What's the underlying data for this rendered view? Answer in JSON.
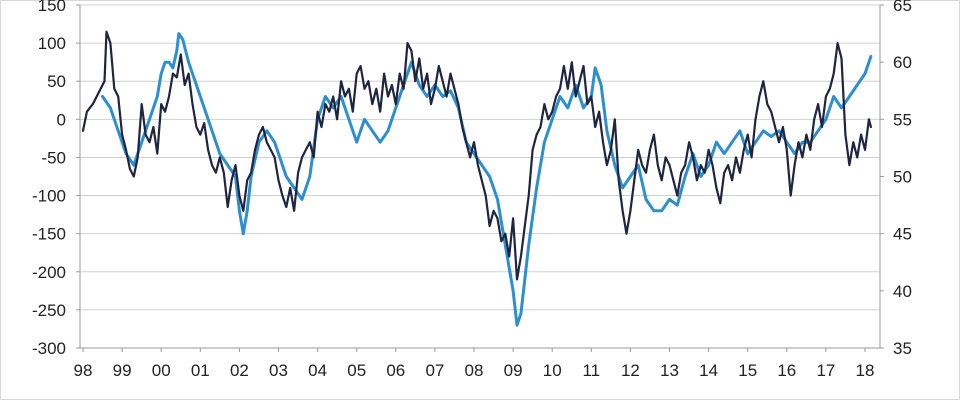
{
  "chart_data": {
    "type": "line",
    "title": "",
    "xlabel": "",
    "ylabel": "",
    "y2label": "",
    "grid": true,
    "legend": "none",
    "x_ticks": [
      "98",
      "99",
      "00",
      "01",
      "02",
      "03",
      "04",
      "05",
      "06",
      "07",
      "08",
      "09",
      "10",
      "11",
      "12",
      "13",
      "14",
      "15",
      "16",
      "17",
      "18"
    ],
    "y_left_ticks": [
      "150",
      "100",
      "50",
      "0",
      "-50",
      "-100",
      "-150",
      "-200",
      "-250",
      "-300"
    ],
    "y_right_ticks": [
      "65",
      "60",
      "55",
      "50",
      "45",
      "40",
      "35"
    ],
    "y_left_lim": [
      -300,
      150
    ],
    "y_right_lim": [
      35,
      65
    ],
    "x_lim": [
      1998.0,
      2018.35
    ],
    "series": [
      {
        "axis": "left",
        "color": "#1f2440",
        "points": [
          [
            1998.0,
            -15
          ],
          [
            1998.1,
            10
          ],
          [
            1998.25,
            20
          ],
          [
            1998.4,
            35
          ],
          [
            1998.55,
            50
          ],
          [
            1998.6,
            115
          ],
          [
            1998.7,
            100
          ],
          [
            1998.8,
            40
          ],
          [
            1998.9,
            30
          ],
          [
            1999.0,
            -20
          ],
          [
            1999.1,
            -40
          ],
          [
            1999.2,
            -65
          ],
          [
            1999.3,
            -75
          ],
          [
            1999.4,
            -50
          ],
          [
            1999.5,
            20
          ],
          [
            1999.6,
            -20
          ],
          [
            1999.7,
            -30
          ],
          [
            1999.8,
            -10
          ],
          [
            1999.9,
            -45
          ],
          [
            2000.0,
            20
          ],
          [
            2000.1,
            10
          ],
          [
            2000.2,
            30
          ],
          [
            2000.3,
            60
          ],
          [
            2000.4,
            55
          ],
          [
            2000.5,
            85
          ],
          [
            2000.6,
            45
          ],
          [
            2000.7,
            60
          ],
          [
            2000.8,
            20
          ],
          [
            2000.9,
            -10
          ],
          [
            2001.0,
            -20
          ],
          [
            2001.1,
            -5
          ],
          [
            2001.2,
            -40
          ],
          [
            2001.3,
            -60
          ],
          [
            2001.4,
            -70
          ],
          [
            2001.5,
            -50
          ],
          [
            2001.6,
            -70
          ],
          [
            2001.7,
            -115
          ],
          [
            2001.8,
            -80
          ],
          [
            2001.9,
            -60
          ],
          [
            2002.0,
            -100
          ],
          [
            2002.1,
            -120
          ],
          [
            2002.2,
            -80
          ],
          [
            2002.3,
            -70
          ],
          [
            2002.4,
            -40
          ],
          [
            2002.5,
            -20
          ],
          [
            2002.6,
            -10
          ],
          [
            2002.7,
            -30
          ],
          [
            2002.8,
            -40
          ],
          [
            2002.9,
            -50
          ],
          [
            2003.0,
            -80
          ],
          [
            2003.1,
            -100
          ],
          [
            2003.2,
            -115
          ],
          [
            2003.3,
            -90
          ],
          [
            2003.4,
            -120
          ],
          [
            2003.5,
            -70
          ],
          [
            2003.6,
            -50
          ],
          [
            2003.7,
            -40
          ],
          [
            2003.8,
            -30
          ],
          [
            2003.9,
            -50
          ],
          [
            2004.0,
            10
          ],
          [
            2004.1,
            -10
          ],
          [
            2004.2,
            20
          ],
          [
            2004.3,
            10
          ],
          [
            2004.4,
            30
          ],
          [
            2004.5,
            0
          ],
          [
            2004.6,
            50
          ],
          [
            2004.7,
            30
          ],
          [
            2004.8,
            40
          ],
          [
            2004.9,
            10
          ],
          [
            2005.0,
            60
          ],
          [
            2005.1,
            70
          ],
          [
            2005.2,
            40
          ],
          [
            2005.3,
            50
          ],
          [
            2005.4,
            20
          ],
          [
            2005.5,
            40
          ],
          [
            2005.6,
            10
          ],
          [
            2005.7,
            60
          ],
          [
            2005.8,
            30
          ],
          [
            2005.9,
            45
          ],
          [
            2006.0,
            20
          ],
          [
            2006.1,
            60
          ],
          [
            2006.2,
            40
          ],
          [
            2006.3,
            100
          ],
          [
            2006.4,
            90
          ],
          [
            2006.5,
            50
          ],
          [
            2006.6,
            80
          ],
          [
            2006.7,
            40
          ],
          [
            2006.8,
            60
          ],
          [
            2006.9,
            20
          ],
          [
            2007.0,
            40
          ],
          [
            2007.1,
            70
          ],
          [
            2007.2,
            50
          ],
          [
            2007.3,
            30
          ],
          [
            2007.4,
            60
          ],
          [
            2007.5,
            40
          ],
          [
            2007.6,
            20
          ],
          [
            2007.7,
            -10
          ],
          [
            2007.8,
            -30
          ],
          [
            2007.9,
            -50
          ],
          [
            2008.0,
            -30
          ],
          [
            2008.1,
            -60
          ],
          [
            2008.2,
            -80
          ],
          [
            2008.3,
            -100
          ],
          [
            2008.4,
            -140
          ],
          [
            2008.5,
            -120
          ],
          [
            2008.6,
            -130
          ],
          [
            2008.7,
            -160
          ],
          [
            2008.8,
            -150
          ],
          [
            2008.9,
            -180
          ],
          [
            2009.0,
            -130
          ],
          [
            2009.1,
            -210
          ],
          [
            2009.2,
            -180
          ],
          [
            2009.3,
            -140
          ],
          [
            2009.4,
            -100
          ],
          [
            2009.5,
            -40
          ],
          [
            2009.6,
            -20
          ],
          [
            2009.7,
            -10
          ],
          [
            2009.8,
            20
          ],
          [
            2009.9,
            0
          ],
          [
            2010.0,
            10
          ],
          [
            2010.1,
            30
          ],
          [
            2010.2,
            40
          ],
          [
            2010.3,
            70
          ],
          [
            2010.4,
            40
          ],
          [
            2010.5,
            75
          ],
          [
            2010.6,
            30
          ],
          [
            2010.7,
            50
          ],
          [
            2010.8,
            70
          ],
          [
            2010.9,
            20
          ],
          [
            2011.0,
            30
          ],
          [
            2011.1,
            -10
          ],
          [
            2011.2,
            10
          ],
          [
            2011.3,
            -30
          ],
          [
            2011.4,
            -60
          ],
          [
            2011.5,
            -40
          ],
          [
            2011.6,
            0
          ],
          [
            2011.7,
            -80
          ],
          [
            2011.8,
            -120
          ],
          [
            2011.9,
            -150
          ],
          [
            2012.0,
            -120
          ],
          [
            2012.1,
            -80
          ],
          [
            2012.2,
            -40
          ],
          [
            2012.3,
            -60
          ],
          [
            2012.4,
            -70
          ],
          [
            2012.5,
            -40
          ],
          [
            2012.6,
            -20
          ],
          [
            2012.7,
            -60
          ],
          [
            2012.8,
            -80
          ],
          [
            2012.9,
            -50
          ],
          [
            2013.0,
            -60
          ],
          [
            2013.1,
            -80
          ],
          [
            2013.2,
            -100
          ],
          [
            2013.3,
            -70
          ],
          [
            2013.4,
            -60
          ],
          [
            2013.5,
            -30
          ],
          [
            2013.6,
            -50
          ],
          [
            2013.7,
            -80
          ],
          [
            2013.8,
            -60
          ],
          [
            2013.9,
            -70
          ],
          [
            2014.0,
            -40
          ],
          [
            2014.1,
            -60
          ],
          [
            2014.2,
            -90
          ],
          [
            2014.3,
            -110
          ],
          [
            2014.4,
            -70
          ],
          [
            2014.5,
            -60
          ],
          [
            2014.6,
            -80
          ],
          [
            2014.7,
            -50
          ],
          [
            2014.8,
            -70
          ],
          [
            2014.9,
            -40
          ],
          [
            2015.0,
            -20
          ],
          [
            2015.1,
            -50
          ],
          [
            2015.2,
            0
          ],
          [
            2015.3,
            30
          ],
          [
            2015.4,
            50
          ],
          [
            2015.5,
            20
          ],
          [
            2015.6,
            10
          ],
          [
            2015.7,
            -10
          ],
          [
            2015.8,
            -30
          ],
          [
            2015.9,
            -10
          ],
          [
            2016.0,
            -40
          ],
          [
            2016.1,
            -100
          ],
          [
            2016.2,
            -60
          ],
          [
            2016.3,
            -30
          ],
          [
            2016.4,
            -50
          ],
          [
            2016.5,
            -20
          ],
          [
            2016.6,
            -40
          ],
          [
            2016.7,
            0
          ],
          [
            2016.8,
            20
          ],
          [
            2016.9,
            -10
          ],
          [
            2017.0,
            30
          ],
          [
            2017.1,
            40
          ],
          [
            2017.2,
            60
          ],
          [
            2017.3,
            100
          ],
          [
            2017.4,
            80
          ],
          [
            2017.5,
            -20
          ],
          [
            2017.6,
            -60
          ],
          [
            2017.7,
            -30
          ],
          [
            2017.8,
            -50
          ],
          [
            2017.9,
            -20
          ],
          [
            2018.0,
            -40
          ],
          [
            2018.1,
            0
          ],
          [
            2018.15,
            -10
          ]
        ]
      },
      {
        "axis": "right",
        "color": "#2e8fd0",
        "points": [
          [
            1998.5,
            57
          ],
          [
            1998.7,
            56
          ],
          [
            1998.9,
            54
          ],
          [
            1999.1,
            52
          ],
          [
            1999.3,
            51
          ],
          [
            1999.5,
            53
          ],
          [
            1999.7,
            55
          ],
          [
            1999.9,
            57
          ],
          [
            2000.0,
            59
          ],
          [
            2000.1,
            60
          ],
          [
            2000.2,
            60
          ],
          [
            2000.3,
            59.5
          ],
          [
            2000.4,
            61
          ],
          [
            2000.45,
            62.5
          ],
          [
            2000.55,
            62
          ],
          [
            2000.7,
            60
          ],
          [
            2000.9,
            58
          ],
          [
            2001.1,
            56
          ],
          [
            2001.3,
            54
          ],
          [
            2001.5,
            52
          ],
          [
            2001.7,
            51
          ],
          [
            2001.9,
            50
          ],
          [
            2002.0,
            47
          ],
          [
            2002.1,
            45
          ],
          [
            2002.2,
            47
          ],
          [
            2002.3,
            50
          ],
          [
            2002.5,
            53
          ],
          [
            2002.7,
            54
          ],
          [
            2002.9,
            53
          ],
          [
            2003.0,
            52
          ],
          [
            2003.2,
            50
          ],
          [
            2003.4,
            49
          ],
          [
            2003.6,
            48
          ],
          [
            2003.8,
            50
          ],
          [
            2004.0,
            55
          ],
          [
            2004.2,
            57
          ],
          [
            2004.4,
            56
          ],
          [
            2004.6,
            57
          ],
          [
            2004.8,
            55
          ],
          [
            2005.0,
            53
          ],
          [
            2005.2,
            55
          ],
          [
            2005.4,
            54
          ],
          [
            2005.6,
            53
          ],
          [
            2005.8,
            54
          ],
          [
            2006.0,
            56
          ],
          [
            2006.2,
            58
          ],
          [
            2006.4,
            60
          ],
          [
            2006.6,
            58
          ],
          [
            2006.8,
            57
          ],
          [
            2007.0,
            58
          ],
          [
            2007.2,
            57
          ],
          [
            2007.4,
            57.5
          ],
          [
            2007.6,
            56
          ],
          [
            2007.8,
            53
          ],
          [
            2008.0,
            52
          ],
          [
            2008.2,
            51
          ],
          [
            2008.4,
            50
          ],
          [
            2008.6,
            48
          ],
          [
            2008.8,
            44
          ],
          [
            2009.0,
            40
          ],
          [
            2009.1,
            37
          ],
          [
            2009.2,
            38
          ],
          [
            2009.4,
            44
          ],
          [
            2009.6,
            49
          ],
          [
            2009.8,
            53
          ],
          [
            2010.0,
            55
          ],
          [
            2010.2,
            57
          ],
          [
            2010.4,
            56
          ],
          [
            2010.6,
            58
          ],
          [
            2010.8,
            56
          ],
          [
            2011.0,
            57
          ],
          [
            2011.1,
            59.5
          ],
          [
            2011.25,
            58
          ],
          [
            2011.4,
            54
          ],
          [
            2011.6,
            51
          ],
          [
            2011.8,
            49
          ],
          [
            2012.0,
            50
          ],
          [
            2012.2,
            51
          ],
          [
            2012.4,
            48
          ],
          [
            2012.6,
            47
          ],
          [
            2012.8,
            47
          ],
          [
            2013.0,
            48
          ],
          [
            2013.2,
            47.5
          ],
          [
            2013.4,
            50
          ],
          [
            2013.6,
            52
          ],
          [
            2013.8,
            50
          ],
          [
            2014.0,
            51
          ],
          [
            2014.2,
            53
          ],
          [
            2014.4,
            52
          ],
          [
            2014.6,
            53
          ],
          [
            2014.8,
            54
          ],
          [
            2015.0,
            52
          ],
          [
            2015.2,
            53
          ],
          [
            2015.4,
            54
          ],
          [
            2015.6,
            53.5
          ],
          [
            2015.8,
            54
          ],
          [
            2016.0,
            53
          ],
          [
            2016.2,
            52
          ],
          [
            2016.4,
            53
          ],
          [
            2016.6,
            53
          ],
          [
            2016.8,
            54
          ],
          [
            2017.0,
            55
          ],
          [
            2017.2,
            57
          ],
          [
            2017.4,
            56
          ],
          [
            2017.6,
            57
          ],
          [
            2017.8,
            58
          ],
          [
            2018.0,
            59
          ],
          [
            2018.15,
            60.5
          ]
        ]
      }
    ]
  }
}
